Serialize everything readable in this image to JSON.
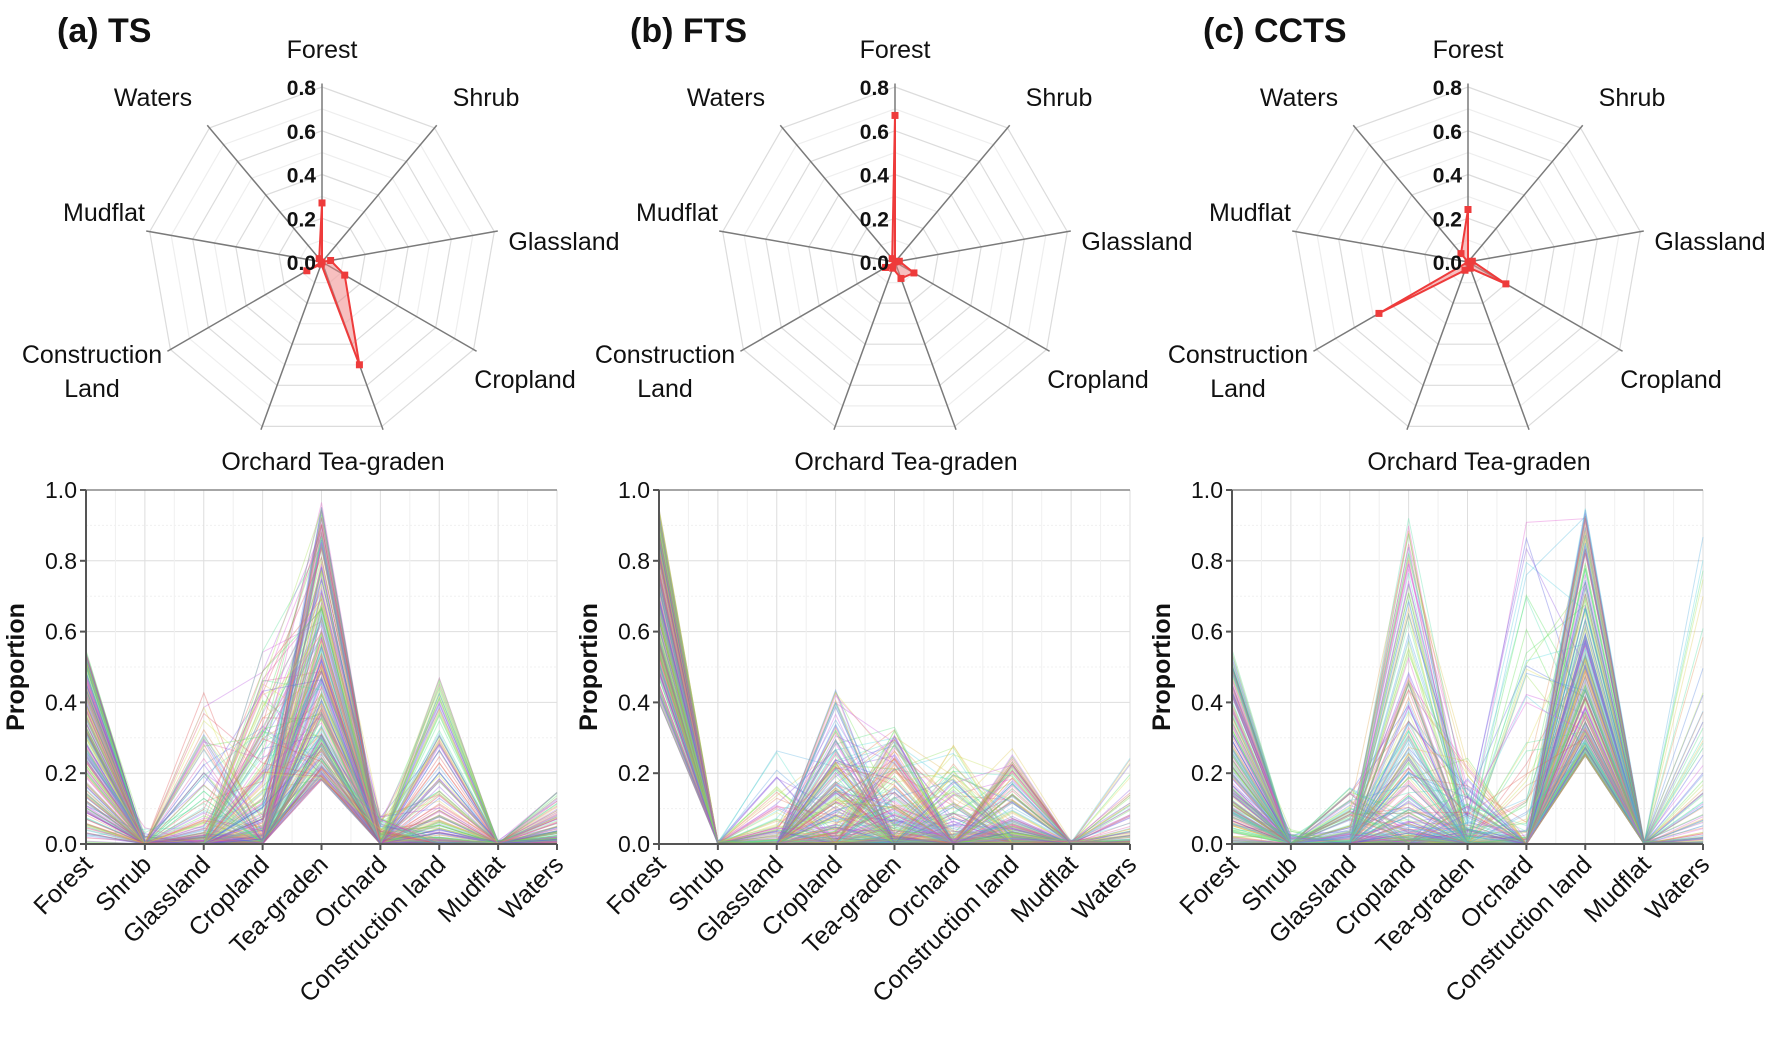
{
  "chart_data": [
    {
      "panel_title": "(a) TS",
      "type": "radar+parallel-coordinates",
      "radar": {
        "axes": [
          "Forest",
          "Shrub",
          "Glassland",
          "Cropland",
          "Tea-graden",
          "Orchard",
          "Construction Land",
          "Mudflat",
          "Waters"
        ],
        "values": [
          0.27,
          0.0,
          0.04,
          0.12,
          0.5,
          0.01,
          0.08,
          0.0,
          0.02
        ],
        "rlim": [
          0,
          0.8
        ],
        "rticks": [
          "0.0",
          "0.2",
          "0.4",
          "0.6",
          "0.8"
        ]
      },
      "parallel": {
        "categories": [
          "Forest",
          "Shrub",
          "Glassland",
          "Cropland",
          "Tea-graden",
          "Orchard",
          "Construction land",
          "Mudflat",
          "Waters"
        ],
        "ylabel": "Proportion",
        "ylim": [
          0,
          1
        ],
        "yticks": [
          "0.0",
          "0.2",
          "0.4",
          "0.6",
          "0.8",
          "1.0"
        ],
        "sample_count": 260,
        "min": [
          0,
          0,
          0,
          0,
          0.18,
          0,
          0,
          0,
          0
        ],
        "max": [
          0.55,
          0.05,
          0.43,
          0.55,
          0.97,
          0.08,
          0.5,
          0.01,
          0.15
        ],
        "mean": [
          0.27,
          0.0,
          0.04,
          0.12,
          0.5,
          0.01,
          0.08,
          0.0,
          0.02
        ]
      }
    },
    {
      "panel_title": "(b) FTS",
      "type": "radar+parallel-coordinates",
      "radar": {
        "axes": [
          "Forest",
          "Shrub",
          "Glassland",
          "Cropland",
          "Tea-graden",
          "Orchard",
          "Construction Land",
          "Mudflat",
          "Waters"
        ],
        "values": [
          0.67,
          0.0,
          0.02,
          0.1,
          0.08,
          0.03,
          0.05,
          0.0,
          0.02
        ],
        "rlim": [
          0,
          0.8
        ],
        "rticks": [
          "0.0",
          "0.2",
          "0.4",
          "0.6",
          "0.8"
        ]
      },
      "parallel": {
        "categories": [
          "Forest",
          "Shrub",
          "Glassland",
          "Cropland",
          "Tea-graden",
          "Orchard",
          "Construction land",
          "Mudflat",
          "Waters"
        ],
        "ylabel": "Proportion",
        "ylim": [
          0,
          1
        ],
        "yticks": [
          "0.0",
          "0.2",
          "0.4",
          "0.6",
          "0.8",
          "1.0"
        ],
        "sample_count": 260,
        "min": [
          0.4,
          0,
          0,
          0,
          0,
          0,
          0,
          0,
          0
        ],
        "max": [
          0.95,
          0.01,
          0.27,
          0.44,
          0.33,
          0.28,
          0.27,
          0.01,
          0.25
        ],
        "mean": [
          0.67,
          0.0,
          0.02,
          0.1,
          0.08,
          0.03,
          0.05,
          0.0,
          0.02
        ]
      }
    },
    {
      "panel_title": "(c) CCTS",
      "type": "radar+parallel-coordinates",
      "radar": {
        "axes": [
          "Forest",
          "Shrub",
          "Glassland",
          "Cropland",
          "Tea-graden",
          "Orchard",
          "Construction Land",
          "Mudflat",
          "Waters"
        ],
        "values": [
          0.24,
          0.0,
          0.02,
          0.2,
          0.03,
          0.04,
          0.47,
          0.0,
          0.05
        ],
        "rlim": [
          0,
          0.8
        ],
        "rticks": [
          "0.0",
          "0.2",
          "0.4",
          "0.6",
          "0.8"
        ]
      },
      "parallel": {
        "categories": [
          "Forest",
          "Shrub",
          "Glassland",
          "Cropland",
          "Tea-graden",
          "Orchard",
          "Construction land",
          "Mudflat",
          "Waters"
        ],
        "ylabel": "Proportion",
        "ylim": [
          0,
          1
        ],
        "yticks": [
          "0.0",
          "0.2",
          "0.4",
          "0.6",
          "0.8",
          "1.0"
        ],
        "sample_count": 260,
        "min": [
          0,
          0,
          0,
          0,
          0,
          0,
          0.25,
          0,
          0
        ],
        "max": [
          0.55,
          0.05,
          0.17,
          0.92,
          0.25,
          0.95,
          0.95,
          0.01,
          0.95
        ],
        "mean": [
          0.24,
          0.0,
          0.02,
          0.2,
          0.03,
          0.04,
          0.47,
          0.0,
          0.05
        ]
      }
    }
  ],
  "colors": {
    "radar_fill": "#f08080",
    "radar_line": "#ee3b3b",
    "grid": "#dddddd",
    "axis": "#777777"
  }
}
